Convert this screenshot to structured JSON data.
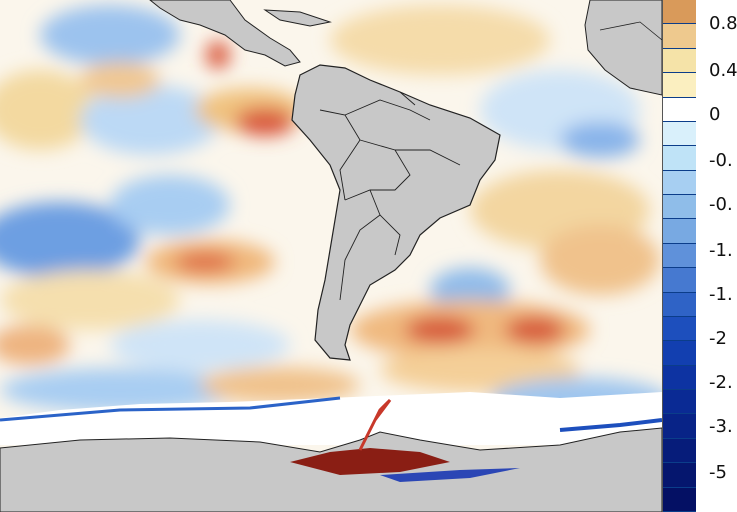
{
  "map": {
    "region": "South America and surrounding oceans",
    "land_color": "#c8c8c8",
    "ice_color": "#ffffff",
    "anomaly_warm_color": "#d24a2e",
    "anomaly_cold_color": "#2b63c8"
  },
  "colorbar": {
    "labels": [
      "0.8",
      "0.4",
      "0",
      "-0.",
      "-0.",
      "-1.",
      "-1.",
      "-2",
      "-2.",
      "-3.",
      "-5"
    ],
    "colors": [
      "#d99a5a",
      "#eec98e",
      "#f5e3a8",
      "#fbefc0",
      "#ffffff",
      "#d9f0fb",
      "#bfe3f7",
      "#a7cff2",
      "#8fbde9",
      "#78a9e2",
      "#5f91da",
      "#4679d0",
      "#2f63c6",
      "#1d4fbd",
      "#123fb0",
      "#0d33a2",
      "#0a2a94",
      "#082387",
      "#061c7a",
      "#05166e",
      "#041064"
    ]
  }
}
